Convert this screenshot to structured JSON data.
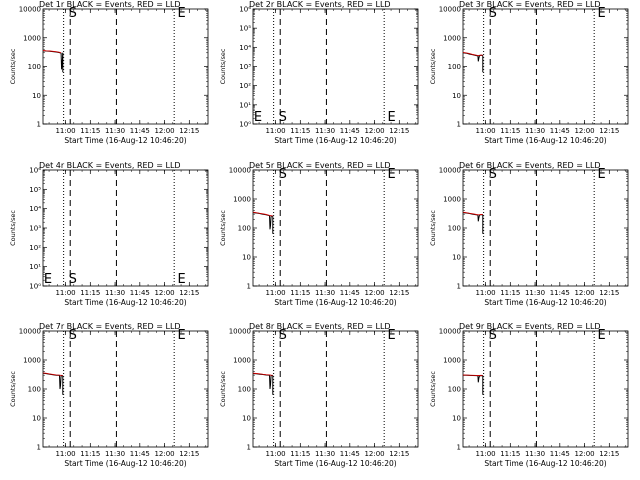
{
  "colors": {
    "background": "#ffffff",
    "axes": "#000000",
    "events": "#000000",
    "lld": "#cc0000"
  },
  "time_ticks": [
    "11:00",
    "11:15",
    "11:30",
    "11:45",
    "12:00",
    "12:15"
  ],
  "chart_data": [
    {
      "type": "line",
      "title": "Det 1r BLACK = Events, RED = LLD",
      "xlabel": "Start Time (16-Aug-12 10:46:20)",
      "ylabel": "Counts/sec",
      "y_scale": "log",
      "ylim": [
        1,
        10000
      ],
      "yticks": [
        "1",
        "10",
        "100",
        "1000",
        "10000"
      ],
      "xlim_minutes": [
        0,
        100
      ],
      "grid": false,
      "markers": [
        {
          "label": "S",
          "x": 15.5
        },
        {
          "label": "E",
          "x": 81.5
        }
      ],
      "vlines_dashed": [
        16.5,
        44.5
      ],
      "vlines_dotted": [
        12.5,
        79.5
      ],
      "series": [
        {
          "kind": "events",
          "x": [
            0,
            2,
            4,
            6,
            8,
            10,
            11,
            11.3,
            11.6,
            12
          ],
          "y": [
            350,
            345,
            340,
            330,
            320,
            305,
            290,
            80,
            110,
            300
          ]
        },
        {
          "kind": "lld",
          "x": [
            0,
            2,
            4,
            6,
            8,
            10,
            11
          ],
          "y": [
            360,
            352,
            345,
            338,
            328,
            312,
            300
          ]
        }
      ]
    },
    {
      "type": "line",
      "title": "Det 2r BLACK = Events, RED = LLD",
      "xlabel": "Start Time (16-Aug-12 10:46:20)",
      "ylabel": "Counts/sec",
      "y_scale": "log",
      "ylim": [
        1,
        1000000
      ],
      "yticks": [
        "10⁰",
        "10¹",
        "10²",
        "10³",
        "10⁴",
        "10⁵",
        "10⁶"
      ],
      "xlim_minutes": [
        0,
        100
      ],
      "grid": false,
      "markers": [
        {
          "label": "E",
          "x": 0.5
        },
        {
          "label": "S",
          "x": 15.5
        },
        {
          "label": "E",
          "x": 81.5
        }
      ],
      "vlines_dashed": [
        16.5,
        44.5
      ],
      "vlines_dotted": [
        12.5,
        79.5
      ],
      "series": []
    },
    {
      "type": "line",
      "title": "Det 3r BLACK = Events, RED = LLD",
      "xlabel": "Start Time (16-Aug-12 10:46:20)",
      "ylabel": "Counts/sec",
      "y_scale": "log",
      "ylim": [
        1,
        10000
      ],
      "yticks": [
        "1",
        "10",
        "100",
        "1000",
        "10000"
      ],
      "xlim_minutes": [
        0,
        100
      ],
      "grid": false,
      "markers": [
        {
          "label": "S",
          "x": 15.5
        },
        {
          "label": "E",
          "x": 81.5
        }
      ],
      "vlines_dashed": [
        16.5,
        44.5
      ],
      "vlines_dotted": [
        12.5,
        79.5
      ],
      "series": [
        {
          "kind": "events",
          "x": [
            0,
            2,
            4,
            6,
            8,
            9,
            9.3,
            9.6,
            10,
            11,
            12
          ],
          "y": [
            300,
            290,
            270,
            255,
            240,
            235,
            150,
            190,
            240,
            245,
            240
          ]
        },
        {
          "kind": "lld",
          "x": [
            0,
            2,
            4,
            6,
            8,
            9,
            10,
            11,
            12
          ],
          "y": [
            310,
            298,
            280,
            262,
            248,
            240,
            245,
            250,
            248
          ]
        }
      ]
    },
    {
      "type": "line",
      "title": "Det 4r BLACK = Events, RED = LLD",
      "xlabel": "Start Time (16-Aug-12 10:46:20)",
      "ylabel": "Counts/sec",
      "y_scale": "log",
      "ylim": [
        1,
        1000000
      ],
      "yticks": [
        "10⁰",
        "10¹",
        "10²",
        "10³",
        "10⁴",
        "10⁵",
        "10⁶"
      ],
      "xlim_minutes": [
        0,
        100
      ],
      "grid": false,
      "markers": [
        {
          "label": "E",
          "x": 0.5
        },
        {
          "label": "S",
          "x": 15.5
        },
        {
          "label": "E",
          "x": 81.5
        }
      ],
      "vlines_dashed": [
        16.5,
        44.5
      ],
      "vlines_dotted": [
        12.5,
        79.5
      ],
      "series": []
    },
    {
      "type": "line",
      "title": "Det 5r BLACK = Events, RED = LLD",
      "xlabel": "Start Time (16-Aug-12 10:46:20)",
      "ylabel": "Counts/sec",
      "y_scale": "log",
      "ylim": [
        1,
        10000
      ],
      "yticks": [
        "1",
        "10",
        "100",
        "1000",
        "10000"
      ],
      "xlim_minutes": [
        0,
        100
      ],
      "grid": false,
      "markers": [
        {
          "label": "S",
          "x": 15.5
        },
        {
          "label": "E",
          "x": 81.5
        }
      ],
      "vlines_dashed": [
        16.5,
        44.5
      ],
      "vlines_dotted": [
        12.5,
        79.5
      ],
      "series": [
        {
          "kind": "events",
          "x": [
            0,
            2,
            4,
            6,
            8,
            9,
            10,
            10.3,
            10.6,
            11,
            12
          ],
          "y": [
            340,
            330,
            315,
            300,
            285,
            275,
            265,
            90,
            120,
            260,
            255
          ]
        },
        {
          "kind": "lld",
          "x": [
            0,
            2,
            4,
            6,
            8,
            10,
            11,
            12
          ],
          "y": [
            350,
            338,
            322,
            308,
            292,
            272,
            266,
            260
          ]
        }
      ]
    },
    {
      "type": "line",
      "title": "Det 6r BLACK = Events, RED = LLD",
      "xlabel": "Start Time (16-Aug-12 10:46:20)",
      "ylabel": "Counts/sec",
      "y_scale": "log",
      "ylim": [
        1,
        10000
      ],
      "yticks": [
        "1",
        "10",
        "100",
        "1000",
        "10000"
      ],
      "xlim_minutes": [
        0,
        100
      ],
      "grid": false,
      "markers": [
        {
          "label": "S",
          "x": 15.5
        },
        {
          "label": "E",
          "x": 81.5
        }
      ],
      "vlines_dashed": [
        16.5,
        44.5
      ],
      "vlines_dotted": [
        12.5,
        79.5
      ],
      "series": [
        {
          "kind": "events",
          "x": [
            0,
            2,
            4,
            6,
            8,
            9,
            9.3,
            9.6,
            10,
            11,
            12
          ],
          "y": [
            340,
            330,
            315,
            300,
            285,
            280,
            170,
            220,
            280,
            290,
            285
          ]
        },
        {
          "kind": "lld",
          "x": [
            0,
            2,
            4,
            6,
            8,
            9,
            10,
            11,
            12
          ],
          "y": [
            350,
            338,
            322,
            308,
            292,
            286,
            288,
            295,
            292
          ]
        }
      ]
    },
    {
      "type": "line",
      "title": "Det 7r BLACK = Events, RED = LLD",
      "xlabel": "Start Time (16-Aug-12 10:46:20)",
      "ylabel": "Counts/sec",
      "y_scale": "log",
      "ylim": [
        1,
        10000
      ],
      "yticks": [
        "1",
        "10",
        "100",
        "1000",
        "10000"
      ],
      "xlim_minutes": [
        0,
        100
      ],
      "grid": false,
      "markers": [
        {
          "label": "S",
          "x": 15.5
        },
        {
          "label": "E",
          "x": 81.5
        }
      ],
      "vlines_dashed": [
        16.5,
        44.5
      ],
      "vlines_dotted": [
        12.5,
        79.5
      ],
      "series": [
        {
          "kind": "events",
          "x": [
            0,
            2,
            4,
            6,
            8,
            10,
            10.3,
            10.6,
            11,
            12
          ],
          "y": [
            350,
            340,
            325,
            310,
            300,
            295,
            100,
            130,
            290,
            285
          ]
        },
        {
          "kind": "lld",
          "x": [
            0,
            2,
            4,
            6,
            8,
            10,
            11,
            12
          ],
          "y": [
            360,
            348,
            332,
            318,
            306,
            300,
            296,
            290
          ]
        }
      ]
    },
    {
      "type": "line",
      "title": "Det 8r BLACK = Events, RED = LLD",
      "xlabel": "Start Time (16-Aug-12 10:46:20)",
      "ylabel": "Counts/sec",
      "y_scale": "log",
      "ylim": [
        1,
        10000
      ],
      "yticks": [
        "1",
        "10",
        "100",
        "1000",
        "10000"
      ],
      "xlim_minutes": [
        0,
        100
      ],
      "grid": false,
      "markers": [
        {
          "label": "S",
          "x": 15.5
        },
        {
          "label": "E",
          "x": 81.5
        }
      ],
      "vlines_dashed": [
        16.5,
        44.5
      ],
      "vlines_dotted": [
        12.5,
        79.5
      ],
      "series": [
        {
          "kind": "events",
          "x": [
            0,
            2,
            4,
            6,
            8,
            10,
            10.3,
            10.6,
            11,
            12
          ],
          "y": [
            340,
            335,
            325,
            315,
            305,
            300,
            100,
            140,
            295,
            290
          ]
        },
        {
          "kind": "lld",
          "x": [
            0,
            2,
            4,
            6,
            8,
            10,
            11,
            12
          ],
          "y": [
            350,
            343,
            333,
            322,
            312,
            306,
            300,
            296
          ]
        }
      ]
    },
    {
      "type": "line",
      "title": "Det 9r BLACK = Events, RED = LLD",
      "xlabel": "Start Time (16-Aug-12 10:46:20)",
      "ylabel": "Counts/sec",
      "y_scale": "log",
      "ylim": [
        1,
        10000
      ],
      "yticks": [
        "1",
        "10",
        "100",
        "1000",
        "10000"
      ],
      "xlim_minutes": [
        0,
        100
      ],
      "grid": false,
      "markers": [
        {
          "label": "S",
          "x": 15.5
        },
        {
          "label": "E",
          "x": 81.5
        }
      ],
      "vlines_dashed": [
        16.5,
        44.5
      ],
      "vlines_dotted": [
        12.5,
        79.5
      ],
      "series": [
        {
          "kind": "events",
          "x": [
            0,
            2,
            4,
            6,
            8,
            9,
            9.3,
            9.6,
            10,
            11,
            12
          ],
          "y": [
            300,
            298,
            295,
            292,
            290,
            288,
            170,
            230,
            285,
            290,
            288
          ]
        },
        {
          "kind": "lld",
          "x": [
            0,
            2,
            4,
            6,
            8,
            9,
            10,
            11,
            12
          ],
          "y": [
            305,
            302,
            300,
            297,
            295,
            293,
            292,
            296,
            294
          ]
        }
      ]
    }
  ]
}
